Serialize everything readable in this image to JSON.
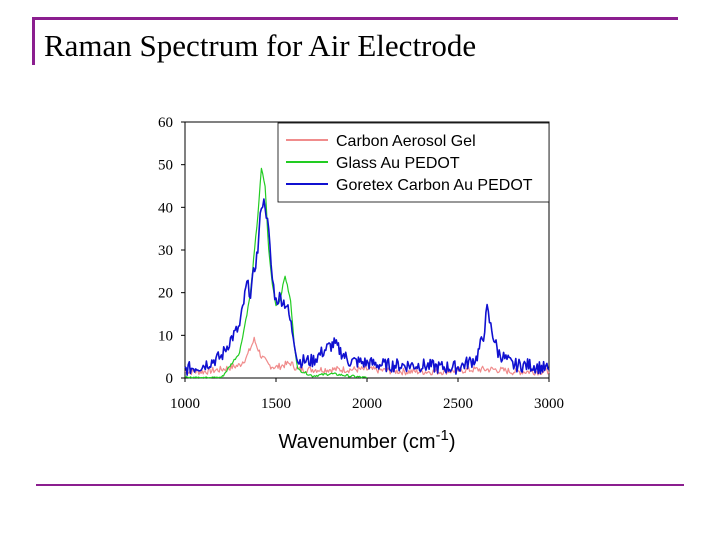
{
  "slide": {
    "title": "Raman Spectrum for Air Electrode",
    "accent_color": "#8b1e8f"
  },
  "chart_data": {
    "type": "line",
    "title": "",
    "xlabel": "Wavenumber (cm",
    "xlabel_superscript": "-1",
    "xlabel_suffix": ")",
    "ylabel": "",
    "xlim": [
      1000,
      3000
    ],
    "ylim": [
      0,
      60
    ],
    "xticks": [
      "1000",
      "1500",
      "2000",
      "2500",
      "3000"
    ],
    "yticks": [
      "0",
      "10",
      "20",
      "30",
      "40",
      "50",
      "60"
    ],
    "grid": false,
    "legend_position": "top-right",
    "series": [
      {
        "name": "Carbon Aerosol Gel",
        "color": "#f08c8c",
        "x": [
          1000,
          1100,
          1200,
          1300,
          1340,
          1380,
          1420,
          1460,
          1500,
          1540,
          1580,
          1620,
          1700,
          1800,
          1900,
          2000,
          2200,
          2400,
          2600,
          2700,
          2800,
          3000
        ],
        "y": [
          1.5,
          1.5,
          2,
          3,
          5,
          9,
          5,
          3,
          2.5,
          3,
          3.5,
          2,
          2,
          2,
          2,
          2,
          1.5,
          1.5,
          2,
          2,
          1.5,
          1.5
        ]
      },
      {
        "name": "Glass Au PEDOT",
        "color": "#22cc22",
        "x": [
          1000,
          1200,
          1300,
          1340,
          1360,
          1400,
          1420,
          1440,
          1460,
          1480,
          1500,
          1520,
          1550,
          1580,
          1600,
          1620,
          1700,
          1800,
          1900,
          2000
        ],
        "y": [
          0,
          0,
          6,
          15,
          20,
          38,
          49,
          45,
          30,
          22,
          17,
          18,
          24,
          18,
          8,
          2,
          0.5,
          1,
          0.5,
          0
        ]
      },
      {
        "name": "Goretex Carbon Au PEDOT",
        "color": "#1010d0",
        "x": [
          1000,
          1100,
          1200,
          1250,
          1300,
          1340,
          1360,
          1400,
          1420,
          1440,
          1460,
          1480,
          1500,
          1520,
          1560,
          1600,
          1620,
          1700,
          1780,
          1820,
          1860,
          1900,
          2000,
          2100,
          2200,
          2300,
          2400,
          2500,
          2600,
          2640,
          2660,
          2680,
          2720,
          2800,
          2900,
          3000
        ],
        "y": [
          2,
          3,
          5,
          9,
          12,
          22,
          20,
          30,
          41,
          41,
          34,
          23,
          18,
          19,
          17,
          9,
          4,
          4,
          7,
          8,
          6,
          4,
          3.5,
          3,
          3,
          3,
          2.5,
          2.5,
          4.5,
          10,
          16,
          12,
          6,
          3,
          3,
          2
        ]
      }
    ]
  }
}
